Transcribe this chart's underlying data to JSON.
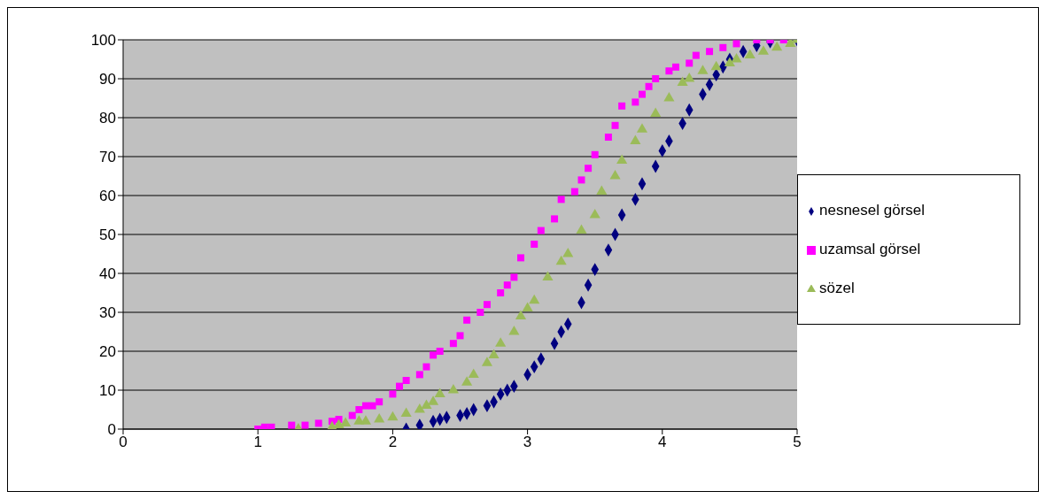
{
  "chart_data": {
    "type": "scatter",
    "xlim": [
      0,
      5
    ],
    "xticks": [
      0,
      1,
      2,
      3,
      4,
      5
    ],
    "ylim": [
      0,
      100
    ],
    "yticks": [
      0,
      10,
      20,
      30,
      40,
      50,
      60,
      70,
      80,
      90,
      100
    ],
    "grid": "y",
    "legend": "right",
    "series": [
      {
        "name": "nesnesel görsel",
        "color": "#000080",
        "marker": "diamond",
        "x": [
          2.1,
          2.2,
          2.3,
          2.35,
          2.4,
          2.5,
          2.55,
          2.6,
          2.7,
          2.75,
          2.8,
          2.85,
          2.9,
          3.0,
          3.05,
          3.1,
          3.2,
          3.25,
          3.3,
          3.4,
          3.45,
          3.5,
          3.6,
          3.65,
          3.7,
          3.8,
          3.85,
          3.95,
          4.0,
          4.05,
          4.15,
          4.2,
          4.3,
          4.35,
          4.4,
          4.45,
          4.5,
          4.6,
          4.7,
          4.8,
          4.9,
          5
        ],
        "values": [
          0,
          1,
          2,
          2.5,
          3,
          3.5,
          4,
          5,
          6,
          7,
          9,
          10,
          11,
          14,
          16,
          18,
          22,
          25,
          27,
          32.5,
          37,
          41,
          46,
          50,
          55,
          59,
          63,
          67.5,
          71.5,
          74,
          78.5,
          82,
          86,
          88.5,
          91,
          93,
          95,
          97,
          98.5,
          99.5,
          null,
          100
        ]
      },
      {
        "name": "uzamsal görsel",
        "color": "#ff00ff",
        "marker": "square",
        "x": [
          1,
          1.05,
          1.1,
          1.25,
          1.35,
          1.45,
          1.55,
          1.6,
          1.7,
          1.75,
          1.8,
          1.85,
          1.9,
          2.0,
          2.05,
          2.1,
          2.2,
          2.25,
          2.3,
          2.35,
          2.45,
          2.5,
          2.55,
          2.65,
          2.7,
          2.8,
          2.85,
          2.9,
          2.95,
          3.05,
          3.1,
          3.2,
          3.25,
          3.35,
          3.4,
          3.45,
          3.5,
          3.6,
          3.65,
          3.7,
          3.8,
          3.85,
          3.9,
          3.95,
          4.05,
          4.1,
          4.2,
          4.25,
          4.35,
          4.45,
          4.55,
          4.7,
          4.8,
          4.9
        ],
        "values": [
          0,
          0.5,
          0.5,
          1,
          1,
          1.5,
          2,
          2.5,
          3.5,
          5,
          6,
          6,
          7,
          9,
          11,
          12.5,
          14,
          16,
          19,
          20,
          22,
          24,
          28,
          30,
          32,
          35,
          37,
          39,
          44,
          47.5,
          51,
          54,
          59,
          61,
          64,
          67,
          70.5,
          75,
          78,
          83,
          84,
          86,
          88,
          90,
          92,
          93,
          94,
          96,
          97,
          98,
          99,
          100,
          100,
          100
        ]
      },
      {
        "name": "sözel",
        "color": "#9bbb59",
        "marker": "triangle",
        "x": [
          1.3,
          1.55,
          1.6,
          1.65,
          1.75,
          1.8,
          1.9,
          2.0,
          2.1,
          2.2,
          2.25,
          2.3,
          2.35,
          2.45,
          2.55,
          2.6,
          2.7,
          2.75,
          2.8,
          2.9,
          2.95,
          3.0,
          3.05,
          3.15,
          3.25,
          3.3,
          3.4,
          3.5,
          3.55,
          3.65,
          3.7,
          3.8,
          3.85,
          3.95,
          4.05,
          4.15,
          4.2,
          4.3,
          4.4,
          4.5,
          4.55,
          4.65,
          4.75,
          4.85,
          4.95,
          5
        ],
        "values": [
          0,
          0.5,
          1,
          1.5,
          2,
          2,
          2.5,
          3,
          4,
          5,
          6,
          7,
          9,
          10,
          12,
          14,
          17,
          19,
          22,
          25,
          29,
          31,
          33,
          39,
          43,
          45,
          51,
          55,
          61,
          65,
          69,
          74,
          77,
          81,
          85,
          89,
          90,
          92,
          93,
          94,
          95,
          96,
          97,
          98,
          99,
          100
        ]
      }
    ]
  }
}
